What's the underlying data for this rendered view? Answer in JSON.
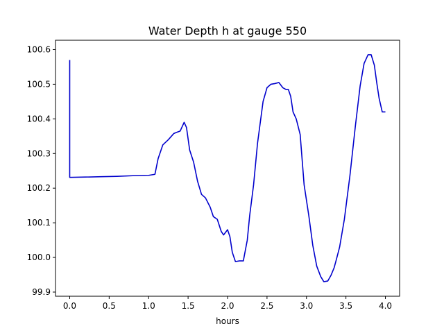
{
  "chart_data": {
    "type": "line",
    "title": "Water Depth h at gauge 550",
    "xlabel": "hours",
    "ylabel": "",
    "xlim": [
      -0.18,
      4.18
    ],
    "ylim": [
      99.888,
      100.627
    ],
    "xticks": [
      0.0,
      0.5,
      1.0,
      1.5,
      2.0,
      2.5,
      3.0,
      3.5,
      4.0
    ],
    "xtick_labels": [
      "0.0",
      "0.5",
      "1.0",
      "1.5",
      "2.0",
      "2.5",
      "3.0",
      "3.5",
      "4.0"
    ],
    "yticks": [
      99.9,
      100.0,
      100.1,
      100.2,
      100.3,
      100.4,
      100.5,
      100.6
    ],
    "ytick_labels": [
      "99.9",
      "100.0",
      "100.1",
      "100.2",
      "100.3",
      "100.4",
      "100.5",
      "100.6"
    ],
    "grid": false,
    "legend": "none",
    "series": [
      {
        "color": "#0000cc",
        "x": [
          0.0,
          0.0,
          0.0,
          0.2,
          0.4,
          0.6,
          0.8,
          1.0,
          1.08,
          1.12,
          1.18,
          1.25,
          1.32,
          1.4,
          1.45,
          1.48,
          1.52,
          1.57,
          1.62,
          1.67,
          1.72,
          1.78,
          1.82,
          1.87,
          1.92,
          1.95,
          2.0,
          2.03,
          2.06,
          2.1,
          2.15,
          2.2,
          2.25,
          2.28,
          2.33,
          2.38,
          2.45,
          2.5,
          2.55,
          2.6,
          2.65,
          2.7,
          2.74,
          2.77,
          2.8,
          2.83,
          2.87,
          2.92,
          2.97,
          3.03,
          3.08,
          3.13,
          3.18,
          3.22,
          3.27,
          3.31,
          3.35,
          3.38,
          3.42,
          3.48,
          3.55,
          3.62,
          3.68,
          3.73,
          3.78,
          3.82,
          3.86,
          3.89,
          3.92,
          3.96,
          4.0
        ],
        "y": [
          100.57,
          100.231,
          100.231,
          100.232,
          100.233,
          100.234,
          100.236,
          100.237,
          100.24,
          100.285,
          100.325,
          100.34,
          100.358,
          100.365,
          100.39,
          100.375,
          100.31,
          100.275,
          100.22,
          100.182,
          100.172,
          100.145,
          100.118,
          100.11,
          100.075,
          100.065,
          100.08,
          100.06,
          100.015,
          99.988,
          99.99,
          99.99,
          100.05,
          100.12,
          100.21,
          100.33,
          100.45,
          100.49,
          100.5,
          100.502,
          100.505,
          100.49,
          100.485,
          100.485,
          100.465,
          100.42,
          100.4,
          100.355,
          100.21,
          100.12,
          100.035,
          99.975,
          99.945,
          99.93,
          99.932,
          99.948,
          99.97,
          99.995,
          100.03,
          100.11,
          100.235,
          100.38,
          100.495,
          100.56,
          100.585,
          100.585,
          100.555,
          100.505,
          100.46,
          100.42,
          100.42
        ]
      }
    ]
  }
}
